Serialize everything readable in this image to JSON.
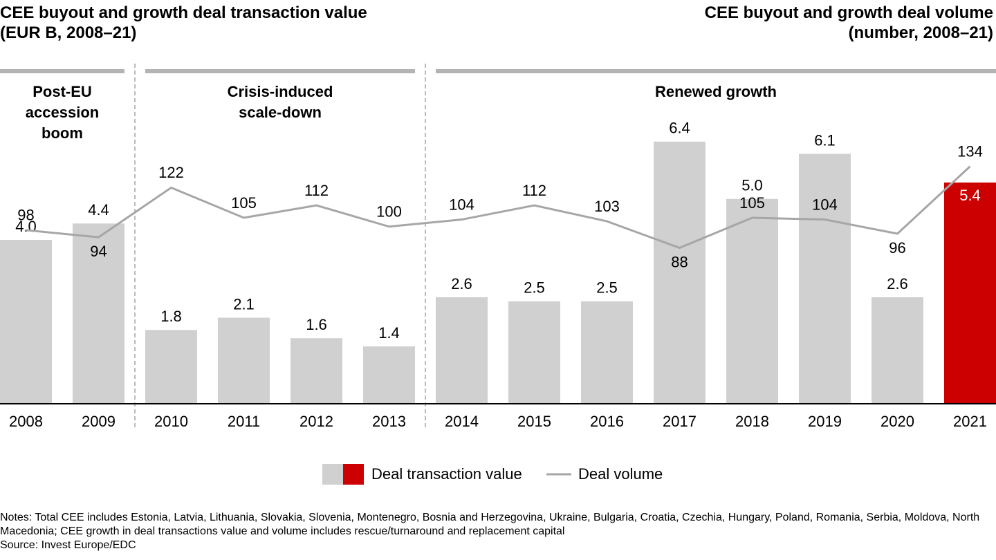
{
  "chart_data": {
    "type": "combo",
    "title": "CEE buyout and growth deal transaction value",
    "subtitle": "(EUR B, 2008–21)",
    "title_right": "CEE buyout and growth deal volume",
    "subtitle_right": "(number, 2008–21)",
    "categories": [
      "2008",
      "2009",
      "2010",
      "2011",
      "2012",
      "2013",
      "2014",
      "2015",
      "2016",
      "2017",
      "2018",
      "2019",
      "2020",
      "2021"
    ],
    "phases": [
      {
        "label": "Post-EU\naccession\nboom",
        "first": "2008",
        "last": "2009"
      },
      {
        "label": "Crisis-induced\nscale-down",
        "first": "2010",
        "last": "2013"
      },
      {
        "label": "Renewed growth",
        "first": "2014",
        "last": "2021"
      }
    ],
    "series": [
      {
        "name": "Deal transaction value",
        "type": "bar",
        "colors": [
          "#d0d0d0",
          "#d0d0d0",
          "#d0d0d0",
          "#d0d0d0",
          "#d0d0d0",
          "#d0d0d0",
          "#d0d0d0",
          "#d0d0d0",
          "#d0d0d0",
          "#d0d0d0",
          "#d0d0d0",
          "#d0d0d0",
          "#d0d0d0",
          "#cc0000"
        ],
        "values": [
          4.0,
          4.4,
          1.8,
          2.1,
          1.6,
          1.4,
          2.6,
          2.5,
          2.5,
          6.4,
          5.0,
          6.1,
          2.6,
          5.4
        ],
        "value_labels": [
          "4.0",
          "4.4",
          "1.8",
          "2.1",
          "1.6",
          "1.4",
          "2.6",
          "2.5",
          "2.5",
          "6.4",
          "5.0",
          "6.1",
          "2.6",
          "5.4"
        ]
      },
      {
        "name": "Deal volume",
        "type": "line",
        "axis": "y2",
        "color": "#a6a6a6",
        "values": [
          98,
          94,
          122,
          105,
          112,
          100,
          104,
          112,
          103,
          88,
          105,
          104,
          96,
          134
        ]
      }
    ],
    "ylim": [
      0,
      8
    ],
    "y2lim": [
      0,
      185
    ],
    "notes": "Notes: Total CEE includes Estonia, Latvia, Lithuania, Slovakia, Slovenia, Montenegro, Bosnia and Herzegovina, Ukraine, Bulgaria, Croatia, Czechia, Hungary, Poland, Romania, Serbia, Moldova, North Macedonia; CEE growth in deal transactions value and volume includes rescue/turnaround and replacement capital",
    "source": "Source: Invest Europe/EDC"
  }
}
